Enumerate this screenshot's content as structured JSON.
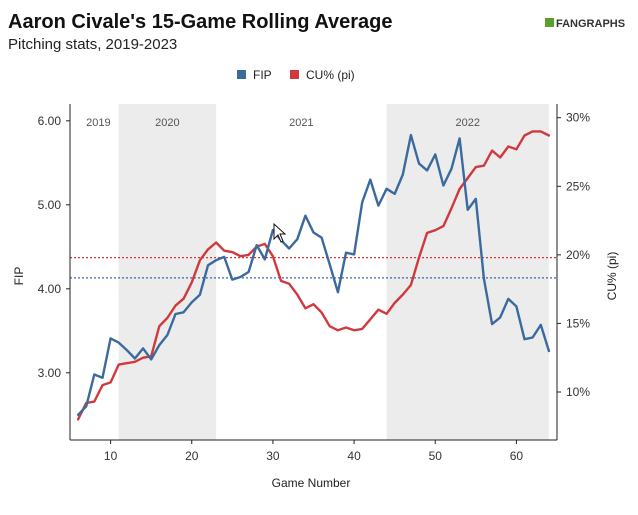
{
  "header": {
    "title": "Aaron Civale's 15-Game Rolling Average",
    "subtitle": "Pitching stats, 2019-2023",
    "brand": "FANGRAPHS"
  },
  "colors": {
    "fip": "#3b6a9e",
    "cu": "#d03a3f",
    "shade": "#ececec",
    "axis": "#222222"
  },
  "chart_data": {
    "type": "line",
    "xlabel": "Game Number",
    "ylabel_left": "FIP",
    "ylabel_right": "CU% (pi)",
    "xlim": [
      5,
      65
    ],
    "ylim_left": [
      2.2,
      6.2
    ],
    "ylim_right": [
      6.5,
      31
    ],
    "x_ticks": [
      10,
      20,
      30,
      40,
      50,
      60
    ],
    "y_left_ticks": [
      "3.00",
      "4.00",
      "5.00",
      "6.00"
    ],
    "y_right_ticks": [
      "10%",
      "15%",
      "20%",
      "25%",
      "30%"
    ],
    "legend": [
      "FIP",
      "CU% (pi)"
    ],
    "legend_position": "top-center",
    "periods": [
      {
        "label": "2019",
        "start": 5,
        "end": 11,
        "shaded": false
      },
      {
        "label": "2020",
        "start": 11,
        "end": 23,
        "shaded": true
      },
      {
        "label": "2021",
        "start": 23,
        "end": 44,
        "shaded": false
      },
      {
        "label": "2022",
        "start": 44,
        "end": 64,
        "shaded": true
      }
    ],
    "reference_lines": [
      {
        "series": "FIP",
        "value": 4.13
      },
      {
        "series": "CU% (pi)",
        "value": 19.8
      }
    ],
    "series": [
      {
        "name": "FIP",
        "axis": "left",
        "x": [
          6,
          7,
          8,
          9,
          10,
          11,
          12,
          13,
          14,
          15,
          16,
          17,
          18,
          19,
          20,
          21,
          22,
          23,
          24,
          25,
          26,
          27,
          28,
          29,
          30,
          31,
          32,
          33,
          34,
          35,
          36,
          37,
          38,
          39,
          40,
          41,
          42,
          43,
          44,
          45,
          46,
          47,
          48,
          49,
          50,
          51,
          52,
          53,
          54,
          55,
          56,
          57,
          58,
          59,
          60,
          61,
          62,
          63,
          64
        ],
        "values": [
          2.5,
          2.6,
          2.98,
          2.94,
          3.41,
          3.36,
          3.27,
          3.17,
          3.29,
          3.16,
          3.33,
          3.45,
          3.7,
          3.72,
          3.84,
          3.93,
          4.28,
          4.34,
          4.38,
          4.11,
          4.14,
          4.2,
          4.52,
          4.35,
          4.7,
          4.58,
          4.48,
          4.59,
          4.87,
          4.67,
          4.61,
          4.29,
          3.96,
          4.43,
          4.41,
          5.03,
          5.3,
          4.99,
          5.19,
          5.13,
          5.36,
          5.83,
          5.49,
          5.41,
          5.6,
          5.23,
          5.43,
          5.79,
          4.94,
          5.07,
          4.12,
          3.58,
          3.66,
          3.88,
          3.79,
          3.4,
          3.42,
          3.57,
          3.26
        ]
      },
      {
        "name": "CU% (pi)",
        "axis": "right",
        "x": [
          6,
          7,
          8,
          9,
          10,
          11,
          12,
          13,
          14,
          15,
          16,
          17,
          18,
          19,
          20,
          21,
          22,
          23,
          24,
          25,
          26,
          27,
          28,
          29,
          30,
          31,
          32,
          33,
          34,
          35,
          36,
          37,
          38,
          39,
          40,
          41,
          42,
          43,
          44,
          45,
          46,
          47,
          48,
          49,
          50,
          51,
          52,
          53,
          54,
          55,
          56,
          57,
          58,
          59,
          60,
          61,
          62,
          63,
          64
        ],
        "values": [
          8.0,
          9.2,
          9.3,
          10.5,
          10.7,
          12.0,
          12.1,
          12.2,
          12.5,
          12.6,
          14.8,
          15.4,
          16.3,
          16.8,
          18.0,
          19.6,
          20.4,
          20.9,
          20.3,
          20.2,
          19.9,
          20.0,
          20.6,
          20.8,
          19.9,
          18.1,
          17.9,
          17.1,
          16.1,
          16.4,
          15.8,
          14.8,
          14.5,
          14.7,
          14.5,
          14.6,
          15.3,
          16.0,
          15.7,
          16.5,
          17.1,
          17.8,
          19.8,
          21.6,
          21.8,
          22.1,
          23.4,
          24.8,
          25.6,
          26.4,
          26.5,
          27.6,
          27.1,
          27.9,
          27.7,
          28.7,
          29.0,
          29.0,
          28.7
        ]
      }
    ]
  }
}
